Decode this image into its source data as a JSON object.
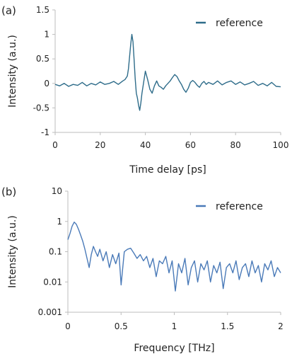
{
  "chart_data": [
    {
      "panel_label": "(a)",
      "type": "line",
      "xlabel": "Time delay [ps]",
      "ylabel": "Intensity (a.u.)",
      "xlim": [
        0,
        100
      ],
      "ylim": [
        -1,
        1.5
      ],
      "x_ticks": [
        0,
        20,
        40,
        60,
        80,
        100
      ],
      "y_ticks": [
        -1,
        -0.5,
        0,
        0.5,
        1,
        1.5
      ],
      "y_tick_labels": [
        "-1",
        "-0.5",
        "0",
        "0.5",
        "1",
        "1.5"
      ],
      "grid": false,
      "legend": "top-right",
      "color": "#2e6c8a",
      "series": [
        {
          "name": "reference",
          "x": [
            0,
            2,
            4,
            6,
            8,
            10,
            12,
            14,
            16,
            18,
            20,
            22,
            24,
            26,
            28,
            30,
            31,
            32,
            32.5,
            33,
            33.5,
            34,
            34.5,
            35,
            35.5,
            36,
            36.5,
            37,
            37.5,
            38,
            38.5,
            39,
            40,
            41,
            42,
            43,
            44,
            45,
            46,
            47,
            48,
            49,
            50,
            51,
            52,
            53,
            54,
            55,
            56,
            57,
            58,
            59,
            60,
            61,
            62,
            63,
            64,
            65,
            66,
            67,
            68,
            70,
            72,
            74,
            76,
            78,
            80,
            82,
            84,
            86,
            88,
            90,
            92,
            94,
            96,
            98,
            100
          ],
          "values": [
            -0.02,
            -0.05,
            0.0,
            -0.06,
            -0.02,
            -0.04,
            0.02,
            -0.05,
            0.0,
            -0.03,
            0.03,
            -0.02,
            0.0,
            0.04,
            -0.02,
            0.05,
            0.08,
            0.15,
            0.3,
            0.55,
            0.8,
            1.0,
            0.85,
            0.5,
            0.1,
            -0.2,
            -0.3,
            -0.45,
            -0.55,
            -0.4,
            -0.2,
            -0.05,
            0.25,
            0.08,
            -0.12,
            -0.2,
            -0.05,
            0.05,
            -0.05,
            -0.08,
            -0.12,
            -0.05,
            0.0,
            0.05,
            0.12,
            0.18,
            0.14,
            0.05,
            -0.02,
            -0.12,
            -0.18,
            -0.1,
            0.02,
            0.06,
            0.02,
            -0.04,
            -0.08,
            0.0,
            0.04,
            -0.02,
            0.02,
            -0.02,
            0.05,
            -0.03,
            0.02,
            0.05,
            -0.02,
            0.03,
            -0.03,
            0.0,
            0.04,
            -0.04,
            0.0,
            -0.05,
            0.02,
            -0.06,
            -0.07
          ]
        }
      ]
    },
    {
      "panel_label": "(b)",
      "type": "line",
      "xlabel": "Frequency [THz]",
      "ylabel": "Intensity (a.u.)",
      "xlim": [
        0,
        2
      ],
      "ylim": [
        0.001,
        10
      ],
      "yscale": "log",
      "x_ticks": [
        0,
        0.5,
        1,
        1.5,
        2
      ],
      "y_ticks": [
        0.001,
        0.01,
        0.1,
        1,
        10
      ],
      "y_tick_labels": [
        "0.001",
        "0.01",
        "0.1",
        "1",
        "10"
      ],
      "grid": false,
      "legend": "top-right",
      "color": "#4a7ab8",
      "series": [
        {
          "name": "reference",
          "x": [
            0.0,
            0.02,
            0.04,
            0.06,
            0.08,
            0.1,
            0.12,
            0.14,
            0.16,
            0.18,
            0.2,
            0.22,
            0.24,
            0.26,
            0.28,
            0.3,
            0.33,
            0.36,
            0.39,
            0.42,
            0.45,
            0.48,
            0.5,
            0.53,
            0.56,
            0.59,
            0.62,
            0.65,
            0.68,
            0.71,
            0.74,
            0.77,
            0.8,
            0.83,
            0.86,
            0.89,
            0.92,
            0.95,
            0.98,
            1.01,
            1.04,
            1.07,
            1.1,
            1.13,
            1.16,
            1.19,
            1.22,
            1.25,
            1.28,
            1.31,
            1.34,
            1.37,
            1.4,
            1.43,
            1.46,
            1.49,
            1.52,
            1.55,
            1.58,
            1.61,
            1.64,
            1.67,
            1.7,
            1.73,
            1.76,
            1.79,
            1.82,
            1.85,
            1.88,
            1.91,
            1.94,
            1.97,
            2.0
          ],
          "values": [
            0.25,
            0.4,
            0.7,
            0.95,
            0.8,
            0.55,
            0.35,
            0.22,
            0.12,
            0.06,
            0.03,
            0.08,
            0.15,
            0.1,
            0.07,
            0.12,
            0.05,
            0.1,
            0.03,
            0.08,
            0.04,
            0.09,
            0.008,
            0.1,
            0.12,
            0.13,
            0.09,
            0.06,
            0.08,
            0.05,
            0.07,
            0.03,
            0.06,
            0.015,
            0.05,
            0.04,
            0.07,
            0.02,
            0.05,
            0.005,
            0.04,
            0.02,
            0.06,
            0.008,
            0.03,
            0.05,
            0.01,
            0.04,
            0.025,
            0.05,
            0.01,
            0.035,
            0.02,
            0.045,
            0.006,
            0.03,
            0.04,
            0.02,
            0.05,
            0.012,
            0.03,
            0.04,
            0.015,
            0.05,
            0.02,
            0.035,
            0.01,
            0.04,
            0.025,
            0.05,
            0.015,
            0.03,
            0.02
          ]
        }
      ]
    }
  ]
}
